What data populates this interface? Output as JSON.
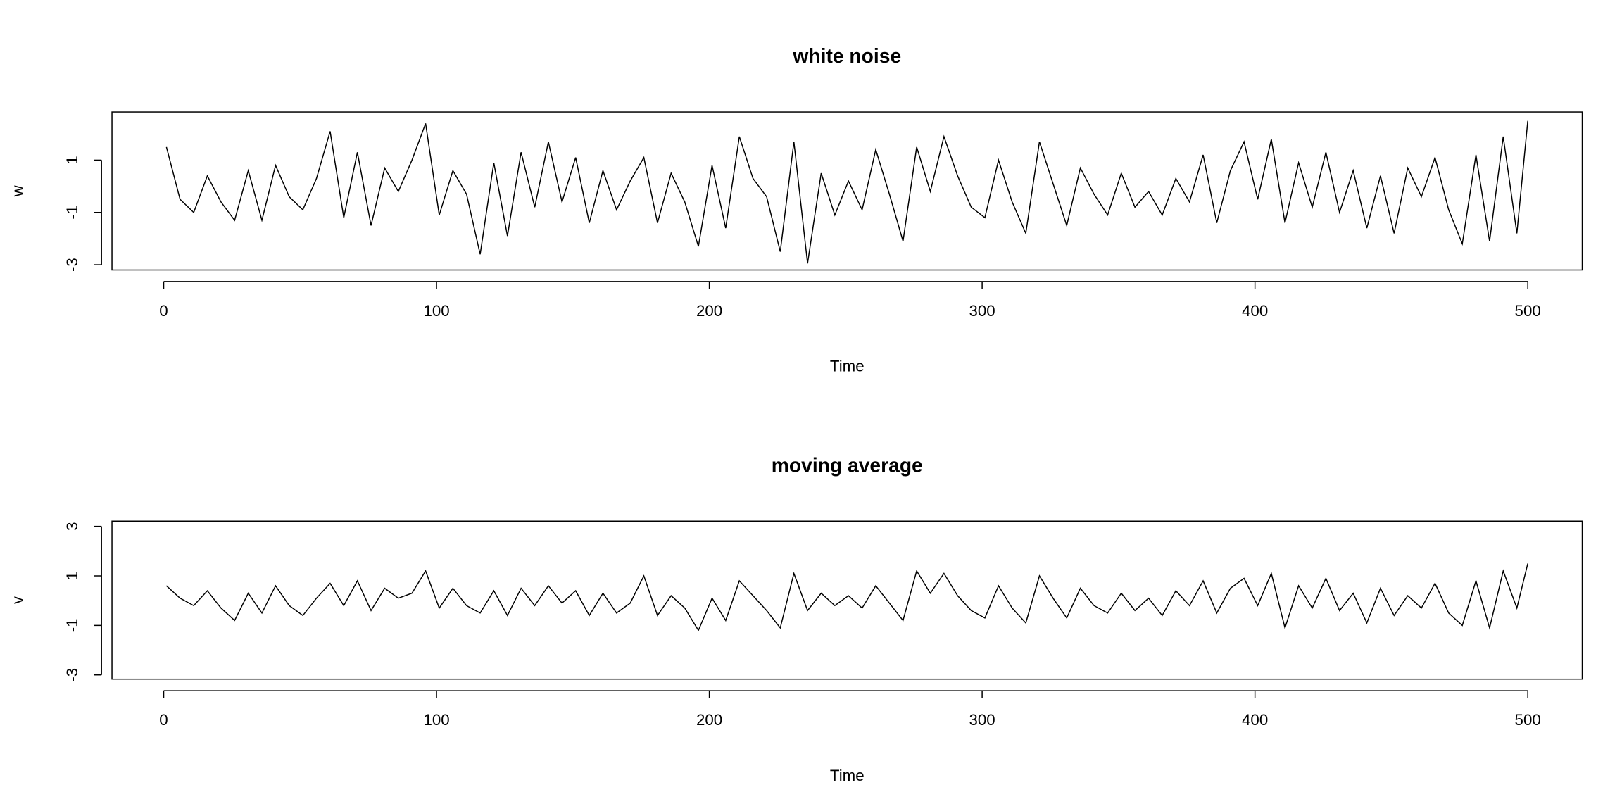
{
  "chart_data": [
    {
      "type": "line",
      "title": "white noise",
      "xlabel": "Time",
      "ylabel": "w",
      "color": "#000000",
      "x": [
        1,
        6,
        11,
        16,
        21,
        26,
        31,
        36,
        41,
        46,
        51,
        56,
        61,
        66,
        71,
        76,
        81,
        86,
        91,
        96,
        101,
        106,
        111,
        116,
        121,
        126,
        131,
        136,
        141,
        146,
        151,
        156,
        161,
        166,
        171,
        176,
        181,
        186,
        191,
        196,
        201,
        206,
        211,
        216,
        221,
        226,
        231,
        236,
        241,
        246,
        251,
        256,
        261,
        266,
        271,
        276,
        281,
        286,
        291,
        296,
        301,
        306,
        311,
        316,
        321,
        326,
        331,
        336,
        341,
        346,
        351,
        356,
        361,
        366,
        371,
        376,
        381,
        386,
        391,
        396,
        401,
        406,
        411,
        416,
        421,
        426,
        431,
        436,
        441,
        446,
        451,
        456,
        461,
        466,
        471,
        476,
        481,
        486,
        491,
        496,
        500
      ],
      "values": [
        1.5,
        -0.5,
        -1.0,
        0.4,
        -0.6,
        -1.3,
        0.6,
        -1.3,
        0.8,
        -0.4,
        -0.9,
        0.3,
        2.1,
        -1.2,
        1.3,
        -1.5,
        0.7,
        -0.2,
        1.0,
        2.4,
        -1.1,
        0.6,
        -0.3,
        -2.6,
        0.9,
        -1.9,
        1.3,
        -0.8,
        1.7,
        -0.6,
        1.1,
        -1.4,
        0.6,
        -0.9,
        0.2,
        1.1,
        -1.4,
        0.5,
        -0.6,
        -2.3,
        0.8,
        -1.6,
        1.9,
        0.3,
        -0.4,
        -2.5,
        1.7,
        -2.95,
        0.5,
        -1.1,
        0.2,
        -0.9,
        1.4,
        -0.3,
        -2.1,
        1.5,
        -0.2,
        1.9,
        0.4,
        -0.8,
        -1.2,
        1.0,
        -0.6,
        -1.8,
        1.7,
        0.1,
        -1.5,
        0.7,
        -0.3,
        -1.1,
        0.5,
        -0.8,
        -0.2,
        -1.1,
        0.3,
        -0.6,
        1.2,
        -1.4,
        0.6,
        1.7,
        -0.5,
        1.8,
        -1.4,
        0.9,
        -0.8,
        1.3,
        -1.0,
        0.6,
        -1.6,
        0.4,
        -1.8,
        0.7,
        -0.4,
        1.1,
        -0.9,
        -2.2,
        1.2,
        -2.1,
        1.9,
        -1.8,
        2.5
      ],
      "xlim": [
        -18.96,
        519.96
      ],
      "ylim": [
        -3.2,
        2.84
      ],
      "xticks": [
        0,
        100,
        200,
        300,
        400,
        500
      ],
      "yticks": [
        -3,
        -1,
        1
      ]
    },
    {
      "type": "line",
      "title": "moving average",
      "xlabel": "Time",
      "ylabel": "v",
      "color": "#000000",
      "x": [
        1,
        6,
        11,
        16,
        21,
        26,
        31,
        36,
        41,
        46,
        51,
        56,
        61,
        66,
        71,
        76,
        81,
        86,
        91,
        96,
        101,
        106,
        111,
        116,
        121,
        126,
        131,
        136,
        141,
        146,
        151,
        156,
        161,
        166,
        171,
        176,
        181,
        186,
        191,
        196,
        201,
        206,
        211,
        216,
        221,
        226,
        231,
        236,
        241,
        246,
        251,
        256,
        261,
        266,
        271,
        276,
        281,
        286,
        291,
        296,
        301,
        306,
        311,
        316,
        321,
        326,
        331,
        336,
        341,
        346,
        351,
        356,
        361,
        366,
        371,
        376,
        381,
        386,
        391,
        396,
        401,
        406,
        411,
        416,
        421,
        426,
        431,
        436,
        441,
        446,
        451,
        456,
        461,
        466,
        471,
        476,
        481,
        486,
        491,
        496,
        500
      ],
      "values": [
        0.6,
        0.1,
        -0.2,
        0.4,
        -0.3,
        -0.8,
        0.3,
        -0.5,
        0.6,
        -0.2,
        -0.6,
        0.1,
        0.7,
        -0.2,
        0.8,
        -0.4,
        0.5,
        0.1,
        0.3,
        1.2,
        -0.3,
        0.5,
        -0.2,
        -0.5,
        0.4,
        -0.6,
        0.5,
        -0.2,
        0.6,
        -0.1,
        0.4,
        -0.6,
        0.3,
        -0.5,
        -0.1,
        1.0,
        -0.6,
        0.2,
        -0.3,
        -1.2,
        0.1,
        -0.8,
        0.8,
        0.2,
        -0.4,
        -1.1,
        1.1,
        -0.4,
        0.3,
        -0.2,
        0.2,
        -0.3,
        0.6,
        -0.1,
        -0.8,
        1.2,
        0.3,
        1.1,
        0.2,
        -0.4,
        -0.7,
        0.6,
        -0.3,
        -0.9,
        1.0,
        0.1,
        -0.7,
        0.5,
        -0.2,
        -0.5,
        0.3,
        -0.4,
        0.1,
        -0.6,
        0.4,
        -0.2,
        0.8,
        -0.5,
        0.5,
        0.9,
        -0.2,
        1.1,
        -1.1,
        0.6,
        -0.3,
        0.9,
        -0.4,
        0.3,
        -0.9,
        0.5,
        -0.6,
        0.2,
        -0.3,
        0.7,
        -0.5,
        -1.0,
        0.8,
        -1.1,
        1.2,
        -0.3,
        1.5
      ],
      "xlim": [
        -18.96,
        519.96
      ],
      "ylim": [
        -3.17,
        3.21
      ],
      "xticks": [
        0,
        100,
        200,
        300,
        400,
        500
      ],
      "yticks": [
        -3,
        -1,
        1,
        3
      ]
    }
  ]
}
